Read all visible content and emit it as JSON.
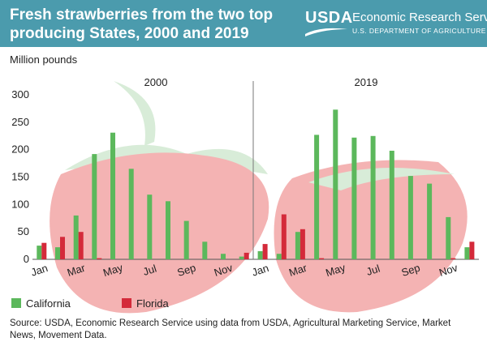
{
  "header": {
    "title": "Fresh strawberries from the two top producing States, 2000 and 2019",
    "logo_text": "USDA",
    "agency": "Economic Research Service",
    "department": "U.S. DEPARTMENT OF AGRICULTURE"
  },
  "colors": {
    "header_bg": "#4b9bad",
    "california": "#5cb85c",
    "florida": "#d42a3a",
    "berry": "#f4b3b3",
    "leaf": "#d8ecd8"
  },
  "chart_data": {
    "type": "bar",
    "ylabel": "Million pounds",
    "ylim": [
      0,
      300
    ],
    "yticks": [
      0,
      50,
      100,
      150,
      200,
      250,
      300
    ],
    "grid": false,
    "panels": [
      {
        "label": "2000",
        "categories": [
          "Jan",
          "Feb",
          "Mar",
          "Apr",
          "May",
          "Jun",
          "Jul",
          "Aug",
          "Sep",
          "Oct",
          "Nov",
          "Dec"
        ],
        "tick_labels": [
          "Jan",
          "Mar",
          "May",
          "Jul",
          "Sep",
          "Nov"
        ],
        "series": [
          {
            "name": "California",
            "values": [
              25,
              22,
              80,
              192,
              231,
              165,
              118,
              106,
              70,
              32,
              10,
              5
            ]
          },
          {
            "name": "Florida",
            "values": [
              30,
              41,
              50,
              2,
              0,
              0,
              0,
              0,
              0,
              0,
              0,
              12
            ]
          }
        ]
      },
      {
        "label": "2019",
        "categories": [
          "Jan",
          "Feb",
          "Mar",
          "Apr",
          "May",
          "Jun",
          "Jul",
          "Aug",
          "Sep",
          "Oct",
          "Nov",
          "Dec"
        ],
        "tick_labels": [
          "Jan",
          "Mar",
          "May",
          "Jul",
          "Sep",
          "Nov"
        ],
        "series": [
          {
            "name": "California",
            "values": [
              15,
              10,
              50,
              227,
              273,
              222,
              225,
              198,
              152,
              138,
              77,
              22
            ]
          },
          {
            "name": "Florida",
            "values": [
              28,
              82,
              55,
              2,
              0,
              0,
              0,
              0,
              0,
              0,
              2,
              32
            ]
          }
        ]
      }
    ],
    "legend": [
      "California",
      "Florida"
    ],
    "legend_position": "bottom-left"
  },
  "source": "Source: USDA, Economic Research Service using data from USDA, Agricultural Marketing Service, Market News, Movement Data."
}
